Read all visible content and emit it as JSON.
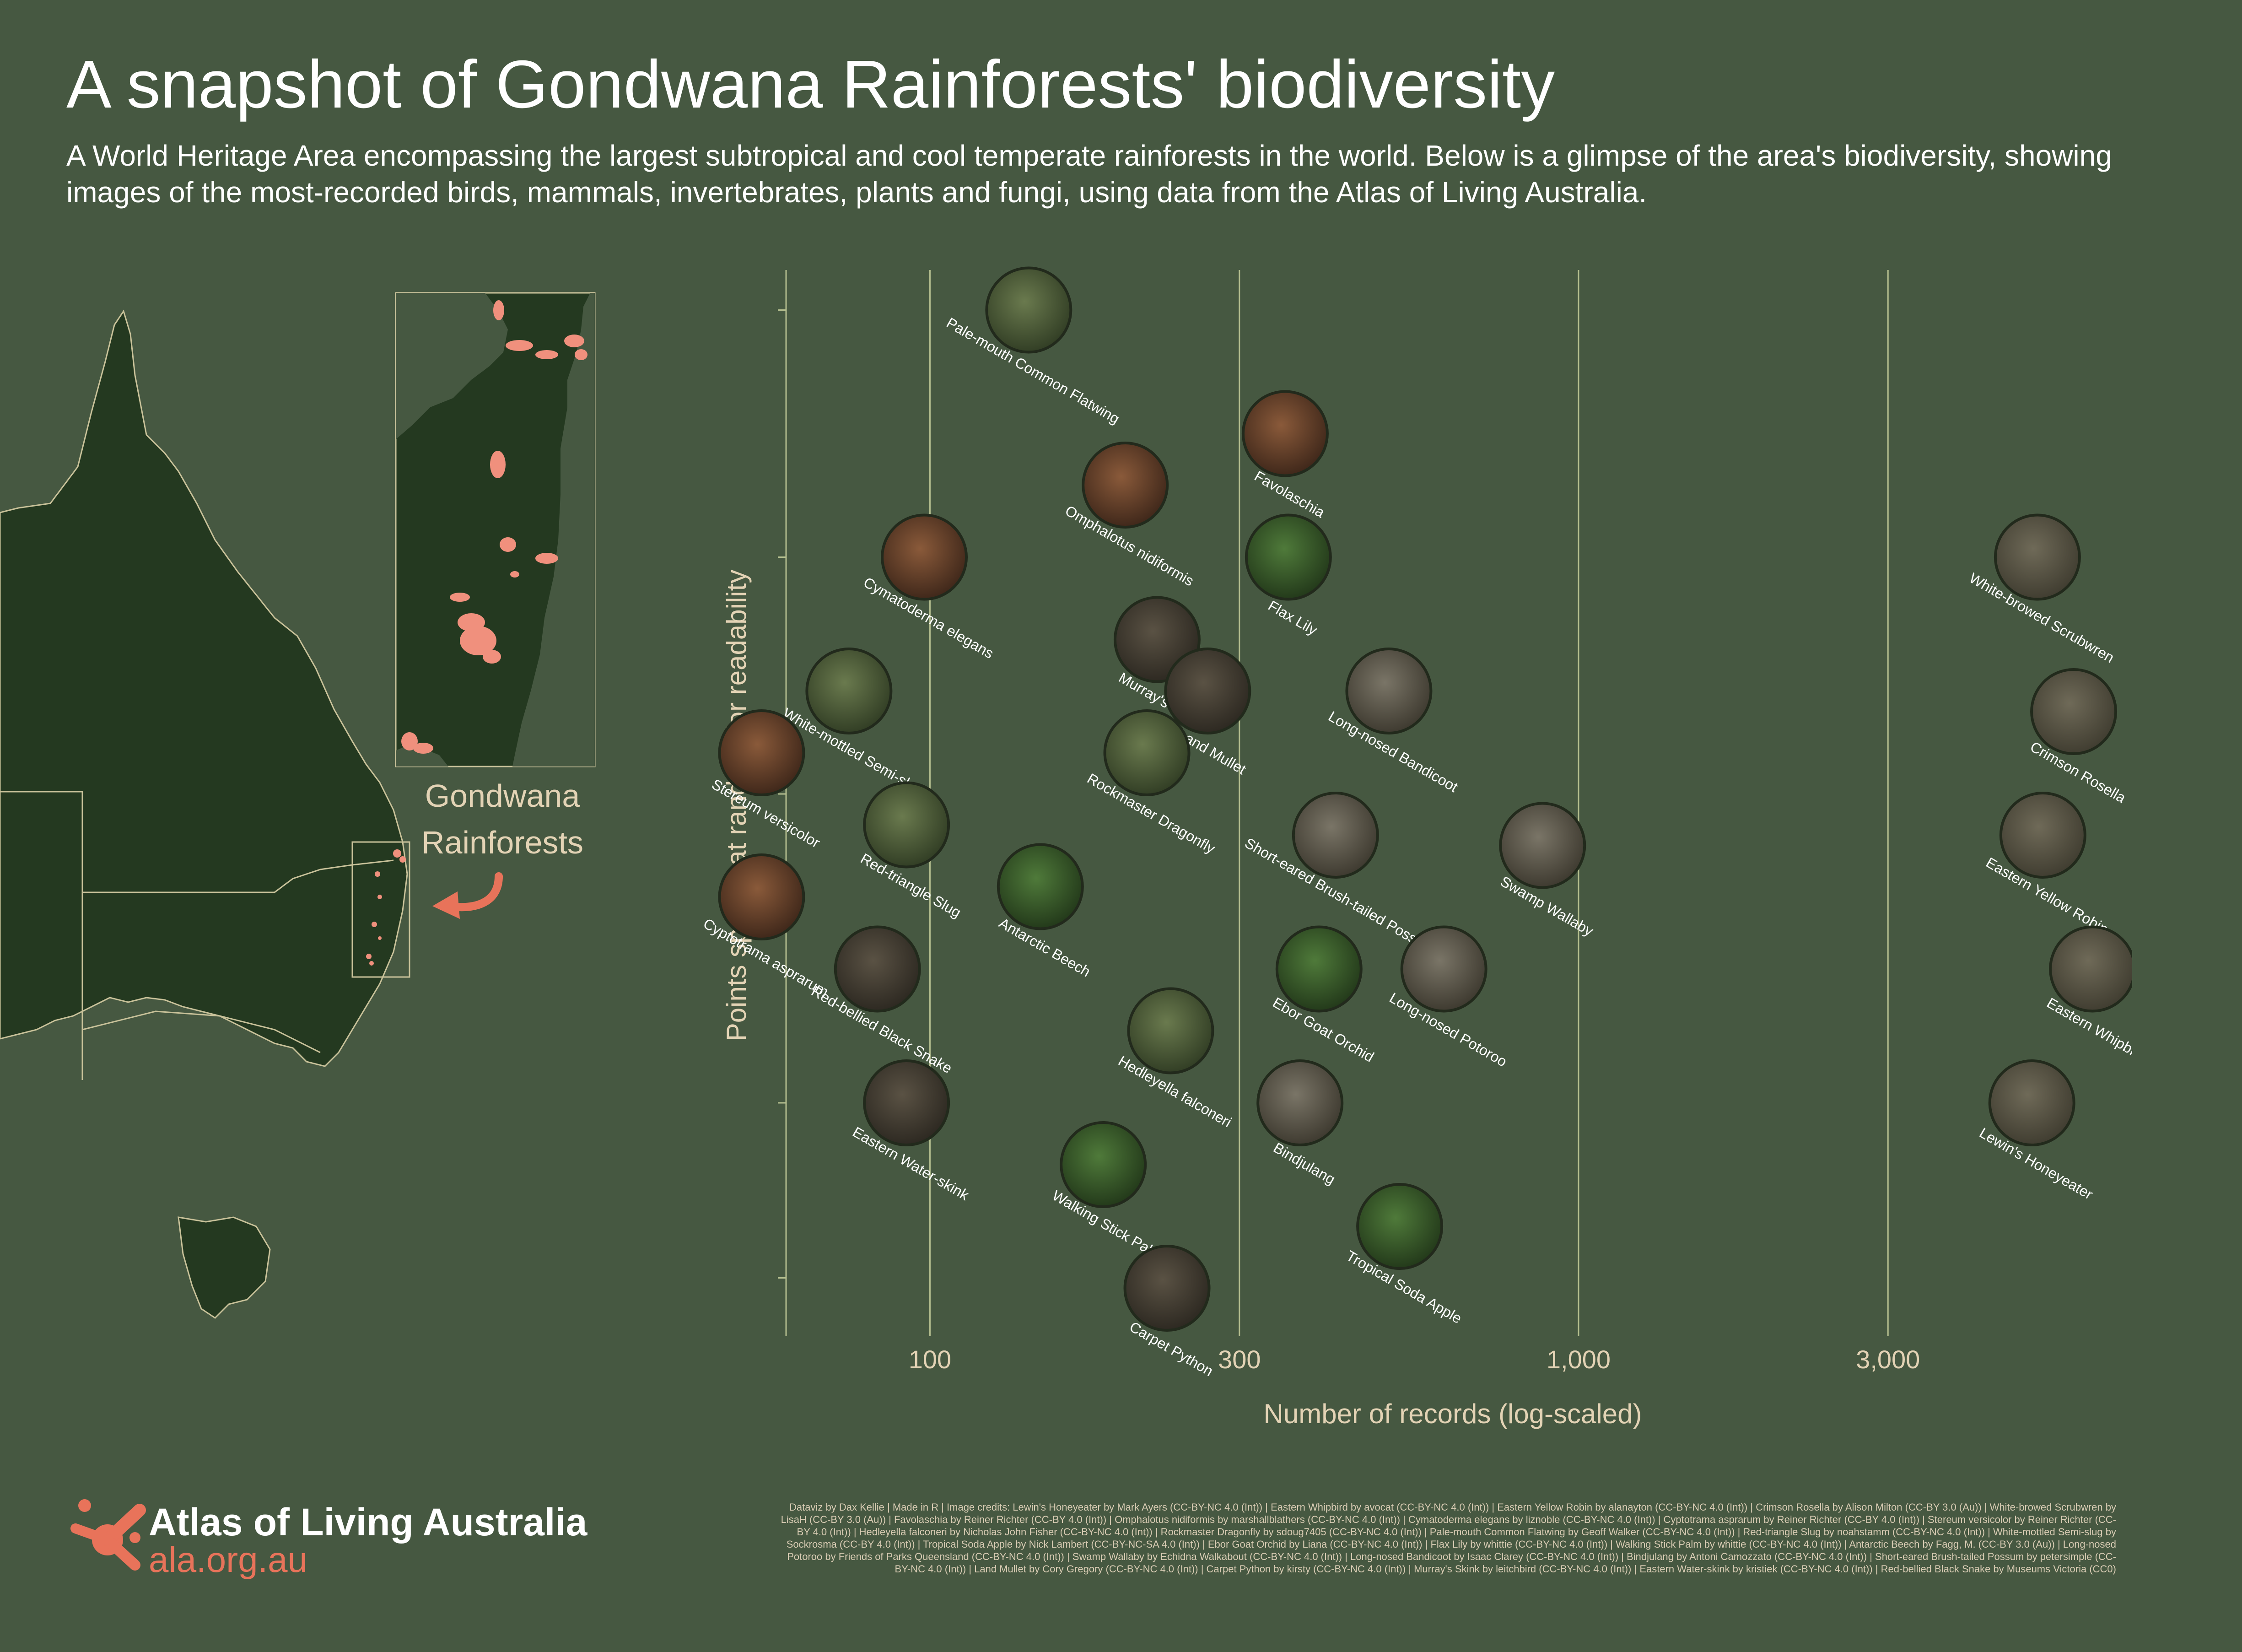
{
  "header": {
    "title": "A snapshot of Gondwana Rainforests' biodiversity",
    "subtitle": "A World Heritage Area encompassing the largest subtropical and cool temperate rainforests in the world. Below is a glimpse of the area's biodiversity, showing images of the most-recorded birds, mammals, invertebrates, plants and fungi, using data from the Atlas of Living Australia."
  },
  "map": {
    "region_label_line1": "Gondwana",
    "region_label_line2": "Rainforests"
  },
  "colors": {
    "background": "#465841",
    "land": "#243920",
    "border": "#c9c29a",
    "rainforest": "#f0907d",
    "accent": "#e8735a",
    "gridline": "#b3bd8e",
    "axis_text": "#e3d3b5"
  },
  "chart_data": {
    "type": "scatter",
    "xlabel": "Number of records (log-scaled)",
    "ylabel": "Points spread at random for readability",
    "x_scale": "log",
    "x_ticks": [
      100,
      300,
      1000,
      3000
    ],
    "x_tick_labels": [
      "100",
      "300",
      "1,000",
      "3,000"
    ],
    "xlim": [
      60,
      6800
    ],
    "ylim": [
      0,
      1
    ],
    "grid": "vertical",
    "points": [
      {
        "name": "Pale-mouth Common Flatwing",
        "group": "invertebrate",
        "x": 142,
        "y": 0.97
      },
      {
        "name": "Favolaschia",
        "group": "fungi",
        "x": 353,
        "y": 0.85
      },
      {
        "name": "Omphalotus nidiformis",
        "group": "fungi",
        "x": 200,
        "y": 0.8
      },
      {
        "name": "Cymatoderma elegans",
        "group": "fungi",
        "x": 98,
        "y": 0.73
      },
      {
        "name": "Flax Lily",
        "group": "plant",
        "x": 357,
        "y": 0.73
      },
      {
        "name": "White-browed Scrubwren",
        "group": "bird",
        "x": 5100,
        "y": 0.73
      },
      {
        "name": "Murray's Skink",
        "group": "reptile",
        "x": 224,
        "y": 0.65
      },
      {
        "name": "White-mottled Semi-slug",
        "group": "invertebrate",
        "x": 75,
        "y": 0.6
      },
      {
        "name": "Land Mullet",
        "group": "reptile",
        "x": 268,
        "y": 0.6
      },
      {
        "name": "Long-nosed Bandicoot",
        "group": "mammal",
        "x": 510,
        "y": 0.6
      },
      {
        "name": "Crimson Rosella",
        "group": "bird",
        "x": 5800,
        "y": 0.58
      },
      {
        "name": "Stereum versicolor",
        "group": "fungi",
        "x": 55,
        "y": 0.54
      },
      {
        "name": "Rockmaster Dragonfly",
        "group": "invertebrate",
        "x": 216,
        "y": 0.54
      },
      {
        "name": "Red-triangle Slug",
        "group": "invertebrate",
        "x": 92,
        "y": 0.47
      },
      {
        "name": "Short-eared Brush-tailed Possum",
        "group": "mammal",
        "x": 422,
        "y": 0.46
      },
      {
        "name": "Swamp Wallaby",
        "group": "mammal",
        "x": 880,
        "y": 0.45
      },
      {
        "name": "Eastern Yellow Robin",
        "group": "bird",
        "x": 5200,
        "y": 0.46
      },
      {
        "name": "Antarctic Beech",
        "group": "plant",
        "x": 148,
        "y": 0.41
      },
      {
        "name": "Cyptotrama asprarum",
        "group": "fungi",
        "x": 55,
        "y": 0.4
      },
      {
        "name": "Red-bellied Black Snake",
        "group": "reptile",
        "x": 83,
        "y": 0.33
      },
      {
        "name": "Ebor Goat Orchid",
        "group": "plant",
        "x": 398,
        "y": 0.33
      },
      {
        "name": "Long-nosed Potoroo",
        "group": "mammal",
        "x": 620,
        "y": 0.33
      },
      {
        "name": "Eastern Whipbird",
        "group": "bird",
        "x": 6200,
        "y": 0.33
      },
      {
        "name": "Hedleyella falconeri",
        "group": "invertebrate",
        "x": 235,
        "y": 0.27
      },
      {
        "name": "Eastern Water-skink",
        "group": "reptile",
        "x": 92,
        "y": 0.2
      },
      {
        "name": "Bindjulang",
        "group": "mammal",
        "x": 372,
        "y": 0.2
      },
      {
        "name": "Lewin's Honeyeater",
        "group": "bird",
        "x": 5000,
        "y": 0.2
      },
      {
        "name": "Walking Stick Palm",
        "group": "plant",
        "x": 185,
        "y": 0.14
      },
      {
        "name": "Tropical Soda Apple",
        "group": "plant",
        "x": 530,
        "y": 0.08
      },
      {
        "name": "Carpet Python",
        "group": "reptile",
        "x": 232,
        "y": 0.02
      }
    ]
  },
  "footer": {
    "logo_name": "Atlas of Living Australia",
    "logo_url_text": "ala.org.au",
    "logo_icon": "ala-logo-icon",
    "credits": "Dataviz by Dax Kellie | Made in R | Image credits: Lewin's Honeyeater by Mark Ayers (CC-BY-NC 4.0 (Int)) | Eastern Whipbird by avocat (CC-BY-NC 4.0 (Int)) | Eastern Yellow Robin by alanayton (CC-BY-NC 4.0 (Int)) | Crimson Rosella by Alison Milton (CC-BY 3.0 (Au)) | White-browed Scrubwren by LisaH (CC-BY 3.0 (Au)) | Favolaschia by Reiner Richter (CC-BY 4.0 (Int)) | Omphalotus nidiformis by marshallblathers (CC-BY-NC 4.0 (Int)) | Cymatoderma elegans by liznoble (CC-BY-NC 4.0 (Int)) | Cyptotrama asprarum by Reiner Richter (CC-BY 4.0 (Int)) | Stereum versicolor by Reiner Richter (CC-BY 4.0 (Int)) | Hedleyella falconeri by Nicholas John Fisher (CC-BY-NC 4.0 (Int)) | Rockmaster Dragonfly by sdoug7405 (CC-BY-NC 4.0 (Int)) | Pale-mouth Common Flatwing by Geoff Walker (CC-BY-NC 4.0 (Int)) | Red-triangle Slug by noahstamm (CC-BY-NC 4.0 (Int)) | White-mottled Semi-slug by Sockrosma (CC-BY 4.0 (Int)) | Tropical Soda Apple by Nick Lambert (CC-BY-NC-SA 4.0 (Int)) | Ebor Goat Orchid by Liana (CC-BY-NC 4.0 (Int)) | Flax Lily by whittie (CC-BY-NC 4.0 (Int)) | Walking Stick Palm by whittie (CC-BY-NC 4.0 (Int)) | Antarctic Beech by Fagg, M. (CC-BY 3.0 (Au)) | Long-nosed Potoroo by Friends of Parks Queensland (CC-BY-NC 4.0 (Int)) | Swamp Wallaby by Echidna Walkabout (CC-BY-NC 4.0 (Int)) | Long-nosed Bandicoot by Isaac Clarey (CC-BY-NC 4.0 (Int)) | Bindjulang by Antoni Camozzato (CC-BY-NC 4.0 (Int)) | Short-eared Brush-tailed Possum by petersimple (CC-BY-NC 4.0 (Int)) | Land Mullet by Cory Gregory (CC-BY-NC 4.0 (Int)) | Carpet Python by kirsty (CC-BY-NC 4.0 (Int)) | Murray's Skink by leitchbird (CC-BY-NC 4.0 (Int)) | Eastern Water-skink by kristiek (CC-BY-NC 4.0 (Int)) | Red-bellied Black Snake by Museums Victoria (CC0)"
  }
}
